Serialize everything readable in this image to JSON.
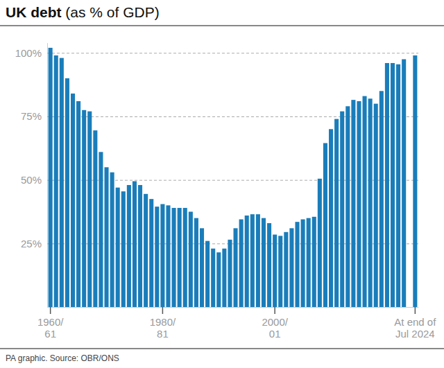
{
  "chart_data": {
    "type": "bar",
    "title": "UK debt (as % of GDP)",
    "source": "PA graphic. Source: OBR/ONS",
    "categories": [
      "1960/\n61",
      null,
      null,
      null,
      null,
      null,
      null,
      null,
      null,
      null,
      null,
      null,
      null,
      null,
      null,
      null,
      null,
      null,
      null,
      null,
      "1980/\n81",
      null,
      null,
      null,
      null,
      null,
      null,
      null,
      null,
      null,
      null,
      null,
      null,
      null,
      null,
      null,
      null,
      null,
      null,
      null,
      "2000/\n01",
      null,
      null,
      null,
      null,
      null,
      null,
      null,
      null,
      null,
      null,
      null,
      null,
      null,
      null,
      null,
      null,
      null,
      null,
      null,
      null,
      null,
      null,
      null,
      null,
      "At end of\nJul 2024"
    ],
    "values": [
      102,
      99,
      98,
      90,
      84,
      81,
      77.5,
      77,
      69.5,
      61,
      55,
      53,
      47,
      45.5,
      48,
      49.5,
      48,
      44.5,
      42.5,
      39.5,
      40.5,
      40,
      39,
      39,
      39,
      37.5,
      35,
      31,
      26,
      23,
      21.5,
      23,
      26.5,
      31,
      34.5,
      36,
      36.5,
      36.5,
      35,
      33,
      28.5,
      28,
      29.5,
      31,
      33.5,
      34.5,
      35,
      35.5,
      50.5,
      64.5,
      70,
      74,
      77,
      79,
      81.5,
      81,
      83,
      82,
      80,
      85,
      96,
      96,
      95.5,
      97.5,
      null,
      99
    ],
    "color": "#1a7dba",
    "ylim": [
      0,
      104
    ],
    "yticks": [
      {
        "value": 25,
        "label": "25%"
      },
      {
        "value": 50,
        "label": "50%"
      },
      {
        "value": 75,
        "label": "75%"
      },
      {
        "value": 100,
        "label": "100%"
      }
    ],
    "grid": true
  }
}
